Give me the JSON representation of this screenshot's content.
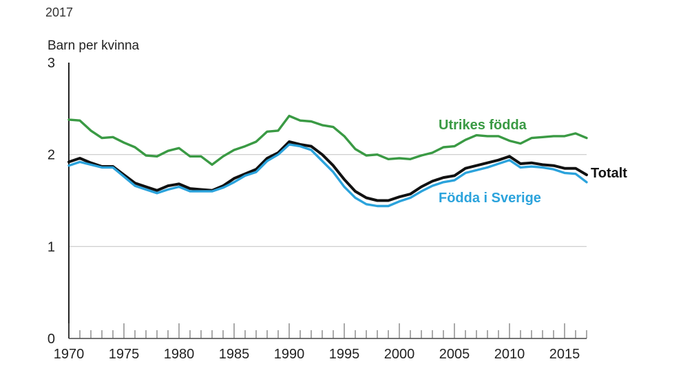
{
  "chart_data": {
    "type": "line",
    "title": "2017",
    "ylabel": "Barn per kvinna",
    "xlabel": "",
    "xlim": [
      1970,
      2017
    ],
    "ylim": [
      0,
      3
    ],
    "y_ticks": [
      "0",
      "1",
      "2",
      "3"
    ],
    "x_ticks": [
      "1970",
      "1975",
      "1980",
      "1985",
      "1990",
      "1995",
      "2000",
      "2005",
      "2010",
      "2015"
    ],
    "grid": "horizontal",
    "x": [
      1970,
      1971,
      1972,
      1973,
      1974,
      1975,
      1976,
      1977,
      1978,
      1979,
      1980,
      1981,
      1982,
      1983,
      1984,
      1985,
      1986,
      1987,
      1988,
      1989,
      1990,
      1991,
      1992,
      1993,
      1994,
      1995,
      1996,
      1997,
      1998,
      1999,
      2000,
      2001,
      2002,
      2003,
      2004,
      2005,
      2006,
      2007,
      2008,
      2009,
      2010,
      2011,
      2012,
      2013,
      2014,
      2015,
      2016,
      2017
    ],
    "series": [
      {
        "name": "Utrikes födda",
        "color": "#3a9a44",
        "values": [
          2.38,
          2.37,
          2.26,
          2.18,
          2.19,
          2.13,
          2.08,
          1.99,
          1.98,
          2.04,
          2.07,
          1.98,
          1.98,
          1.89,
          1.98,
          2.05,
          2.09,
          2.14,
          2.25,
          2.26,
          2.42,
          2.37,
          2.36,
          2.32,
          2.3,
          2.2,
          2.06,
          1.99,
          2.0,
          1.95,
          1.96,
          1.95,
          1.99,
          2.02,
          2.08,
          2.09,
          2.16,
          2.21,
          2.2,
          2.2,
          2.15,
          2.12,
          2.18,
          2.19,
          2.2,
          2.2,
          2.23,
          2.18
        ]
      },
      {
        "name": "Totalt",
        "color": "#111111",
        "values": [
          1.92,
          1.96,
          1.91,
          1.87,
          1.87,
          1.78,
          1.69,
          1.65,
          1.61,
          1.66,
          1.68,
          1.63,
          1.62,
          1.61,
          1.66,
          1.74,
          1.79,
          1.84,
          1.96,
          2.02,
          2.14,
          2.11,
          2.09,
          2.0,
          1.88,
          1.73,
          1.6,
          1.53,
          1.5,
          1.5,
          1.54,
          1.57,
          1.65,
          1.71,
          1.75,
          1.77,
          1.85,
          1.88,
          1.91,
          1.94,
          1.98,
          1.9,
          1.91,
          1.89,
          1.88,
          1.85,
          1.85,
          1.78
        ]
      },
      {
        "name": "Födda i Sverige",
        "color": "#2ba3dc",
        "values": [
          1.88,
          1.92,
          1.89,
          1.86,
          1.86,
          1.76,
          1.66,
          1.62,
          1.58,
          1.62,
          1.65,
          1.6,
          1.6,
          1.6,
          1.64,
          1.7,
          1.77,
          1.81,
          1.93,
          2.0,
          2.11,
          2.09,
          2.05,
          1.93,
          1.81,
          1.65,
          1.53,
          1.46,
          1.44,
          1.44,
          1.49,
          1.53,
          1.6,
          1.66,
          1.7,
          1.72,
          1.8,
          1.83,
          1.86,
          1.9,
          1.94,
          1.86,
          1.87,
          1.86,
          1.84,
          1.8,
          1.79,
          1.7
        ]
      }
    ]
  }
}
